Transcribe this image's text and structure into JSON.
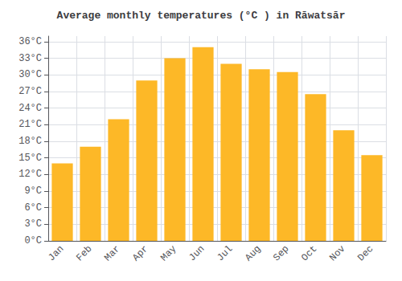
{
  "chart_data": {
    "type": "bar",
    "title": "Average monthly temperatures (°C ) in Rāwatsār",
    "categories": [
      "Jan",
      "Feb",
      "Mar",
      "Apr",
      "May",
      "Jun",
      "Jul",
      "Aug",
      "Sep",
      "Oct",
      "Nov",
      "Dec"
    ],
    "values": [
      14,
      17,
      22,
      29,
      33,
      35,
      32,
      31,
      30.5,
      26.5,
      20,
      15.5
    ],
    "color": "#FDB827",
    "ylim": [
      0,
      37
    ],
    "yticks": [
      {
        "value": 0,
        "label": "0°C"
      },
      {
        "value": 3,
        "label": "3°C"
      },
      {
        "value": 6,
        "label": "6°C"
      },
      {
        "value": 9,
        "label": "9°C"
      },
      {
        "value": 12,
        "label": "12°C"
      },
      {
        "value": 15,
        "label": "15°C"
      },
      {
        "value": 18,
        "label": "18°C"
      },
      {
        "value": 21,
        "label": "21°C"
      },
      {
        "value": 24,
        "label": "24°C"
      },
      {
        "value": 27,
        "label": "27°C"
      },
      {
        "value": 30,
        "label": "30°C"
      },
      {
        "value": 33,
        "label": "33°C"
      },
      {
        "value": 36,
        "label": "36°C"
      }
    ],
    "grid": true
  }
}
